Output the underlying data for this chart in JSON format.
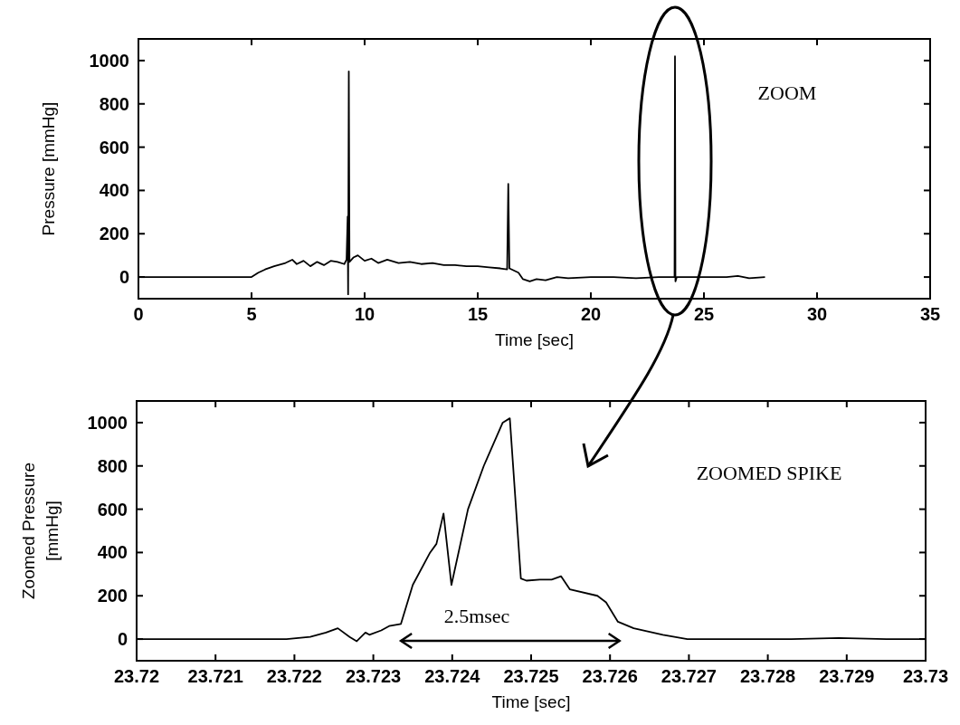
{
  "chart_data": [
    {
      "type": "line",
      "xlabel": "Time [sec]",
      "ylabel": "Pressure [mmHg]",
      "xlim": [
        0,
        35
      ],
      "ylim": [
        -100,
        1100
      ],
      "xticks": [
        0,
        5,
        10,
        15,
        20,
        25,
        30,
        35
      ],
      "yticks": [
        0,
        200,
        400,
        600,
        800,
        1000
      ],
      "annotations": [
        "ZOOM"
      ],
      "series": [
        {
          "color": "#000000",
          "x": [
            0,
            5.0,
            5.3,
            5.6,
            6.0,
            6.5,
            6.8,
            7.0,
            7.3,
            7.6,
            7.9,
            8.2,
            8.5,
            8.8,
            9.1,
            9.2,
            9.25,
            9.27,
            9.3,
            9.33,
            9.5,
            9.7,
            10.0,
            10.3,
            10.6,
            11.0,
            11.5,
            12.0,
            12.5,
            13.0,
            13.5,
            14.0,
            14.5,
            15.0,
            15.5,
            16.0,
            16.3,
            16.35,
            16.4,
            16.8,
            17.0,
            17.3,
            17.6,
            18.0,
            18.5,
            19.0,
            20,
            21,
            22,
            23,
            23.7,
            23.72,
            23.74,
            23.8,
            25,
            26,
            26.5,
            27,
            27.7
          ],
          "values": [
            0,
            0,
            20,
            35,
            50,
            65,
            80,
            60,
            75,
            50,
            70,
            55,
            75,
            70,
            60,
            80,
            280,
            -80,
            950,
            70,
            90,
            100,
            75,
            85,
            65,
            80,
            65,
            70,
            60,
            65,
            55,
            55,
            50,
            50,
            45,
            40,
            35,
            430,
            40,
            20,
            -10,
            -20,
            -10,
            -15,
            0,
            -5,
            0,
            0,
            -5,
            0,
            0,
            1020,
            -20,
            0,
            0,
            0,
            5,
            -5,
            0
          ]
        }
      ]
    },
    {
      "type": "line",
      "xlabel": "Time [sec]",
      "ylabel": "Zoomed Pressure [mmHg]",
      "xlim": [
        23.72,
        23.73
      ],
      "ylim": [
        -100,
        1100
      ],
      "xticks": [
        23.72,
        23.721,
        23.722,
        23.723,
        23.724,
        23.725,
        23.726,
        23.727,
        23.728,
        23.729,
        23.73
      ],
      "yticks": [
        0,
        200,
        400,
        600,
        800,
        1000
      ],
      "annotations": [
        "ZOOMED SPIKE",
        "2.5msec"
      ],
      "series": [
        {
          "color": "#000000",
          "x": [
            23.72,
            23.7208,
            23.7215,
            23.7219,
            23.7222,
            23.7224,
            23.72255,
            23.7227,
            23.72279,
            23.7229,
            23.72295,
            23.7231,
            23.7232,
            23.72335,
            23.7235,
            23.72372,
            23.7238,
            23.72389,
            23.72399,
            23.7242,
            23.7244,
            23.72464,
            23.72473,
            23.72487,
            23.72494,
            23.72511,
            23.72526,
            23.72538,
            23.72549,
            23.72584,
            23.72595,
            23.7261,
            23.7263,
            23.72667,
            23.72698,
            23.7275,
            23.7283,
            23.7289,
            23.7295,
            23.73
          ],
          "values": [
            0,
            0,
            0,
            0,
            10,
            30,
            50,
            10,
            -10,
            30,
            20,
            40,
            60,
            70,
            250,
            400,
            440,
            580,
            250,
            600,
            800,
            1000,
            1020,
            280,
            270,
            275,
            275,
            290,
            230,
            200,
            170,
            80,
            50,
            20,
            0,
            0,
            0,
            5,
            0,
            0
          ]
        }
      ]
    }
  ]
}
